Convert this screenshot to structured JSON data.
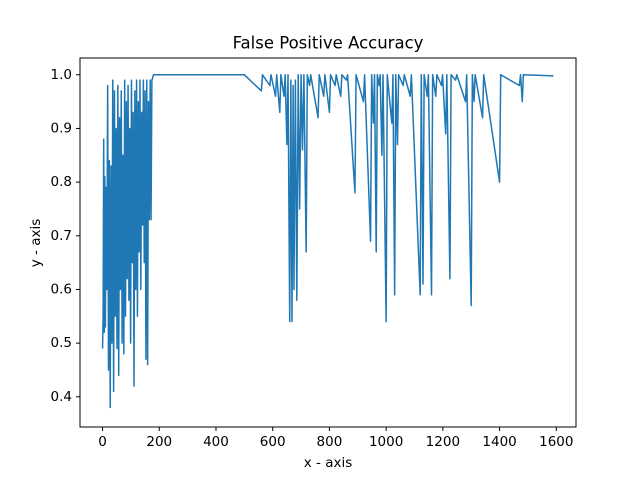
{
  "chart_data": {
    "type": "line",
    "title": "False Positive Accuracy",
    "x_label": "x - axis",
    "y_label": "y - axis",
    "xlim": [
      -79.5,
      1669.5
    ],
    "ylim": [
      0.34375,
      1.03125
    ],
    "xticks": [
      0,
      200,
      400,
      600,
      800,
      1000,
      1200,
      1400,
      1600
    ],
    "yticks": [
      0.4,
      0.5,
      0.6,
      0.7,
      0.8,
      0.9,
      {
        "value": 1,
        "label": "1.0"
      }
    ],
    "grid": false,
    "series": [
      {
        "color": "#1f77b4",
        "x": [
          0,
          2,
          4,
          6,
          8,
          10,
          12,
          15,
          18,
          21,
          24,
          27,
          30,
          33,
          36,
          39,
          42,
          45,
          48,
          51,
          54,
          57,
          60,
          63,
          66,
          69,
          72,
          75,
          78,
          81,
          84,
          87,
          90,
          93,
          96,
          99,
          102,
          105,
          108,
          111,
          114,
          117,
          120,
          123,
          126,
          129,
          132,
          135,
          138,
          141,
          144,
          147,
          150,
          153,
          156,
          159,
          162,
          165,
          168,
          171,
          174,
          180,
          500,
          560,
          564,
          590,
          594,
          610,
          614,
          625,
          629,
          640,
          644,
          650,
          654,
          660,
          664,
          668,
          672,
          675,
          680,
          685,
          690,
          695,
          700,
          705,
          710,
          718,
          722,
          730,
          734,
          760,
          764,
          780,
          784,
          800,
          804,
          820,
          824,
          840,
          844,
          860,
          864,
          890,
          894,
          920,
          924,
          945,
          949,
          955,
          959,
          965,
          969,
          975,
          979,
          985,
          989,
          1000,
          1004,
          1020,
          1024,
          1030,
          1034,
          1040,
          1044,
          1060,
          1064,
          1085,
          1089,
          1120,
          1124,
          1130,
          1134,
          1145,
          1149,
          1160,
          1164,
          1175,
          1179,
          1195,
          1199,
          1210,
          1214,
          1225,
          1229,
          1245,
          1249,
          1280,
          1284,
          1300,
          1304,
          1310,
          1314,
          1340,
          1344,
          1400,
          1404,
          1470,
          1474,
          1480,
          1484,
          1590
        ],
        "values": [
          0.49,
          0.55,
          0.88,
          0.52,
          0.81,
          0.53,
          0.79,
          0.6,
          0.98,
          0.45,
          0.84,
          0.38,
          0.83,
          0.5,
          0.99,
          0.41,
          0.97,
          0.55,
          0.9,
          0.49,
          0.98,
          0.44,
          0.92,
          0.6,
          0.97,
          0.5,
          0.85,
          0.48,
          0.99,
          0.55,
          0.95,
          0.62,
          0.98,
          0.58,
          0.9,
          0.5,
          0.99,
          0.65,
          0.93,
          0.42,
          0.97,
          0.6,
          0.99,
          0.55,
          0.95,
          0.67,
          0.99,
          0.6,
          0.93,
          0.72,
          0.99,
          0.65,
          0.97,
          0.47,
          0.99,
          0.46,
          0.95,
          0.73,
          0.99,
          0.73,
          0.99,
          1,
          1,
          0.97,
          1,
          0.98,
          1,
          0.96,
          1,
          0.93,
          1,
          0.96,
          1,
          0.87,
          1,
          0.54,
          0.99,
          0.54,
          0.98,
          0.6,
          0.99,
          0.58,
          1,
          0.75,
          1,
          0.86,
          1,
          0.67,
          1,
          0.98,
          1,
          0.92,
          1,
          0.96,
          1,
          0.93,
          1,
          0.98,
          1,
          0.96,
          1,
          0.99,
          1,
          0.78,
          1,
          0.95,
          1,
          0.69,
          1,
          0.91,
          1,
          0.67,
          1,
          0.98,
          1,
          0.85,
          1,
          0.54,
          1,
          0.91,
          1,
          0.59,
          1,
          0.87,
          1,
          0.98,
          1,
          0.96,
          1,
          0.59,
          1,
          0.61,
          1,
          0.96,
          1,
          0.59,
          1,
          0.96,
          1,
          0.98,
          1,
          0.89,
          1,
          0.62,
          1,
          0.99,
          1,
          0.95,
          1,
          0.57,
          1,
          0.95,
          1,
          0.92,
          1,
          0.8,
          1,
          0.98,
          1,
          0.95,
          1,
          0.998
        ]
      }
    ]
  }
}
